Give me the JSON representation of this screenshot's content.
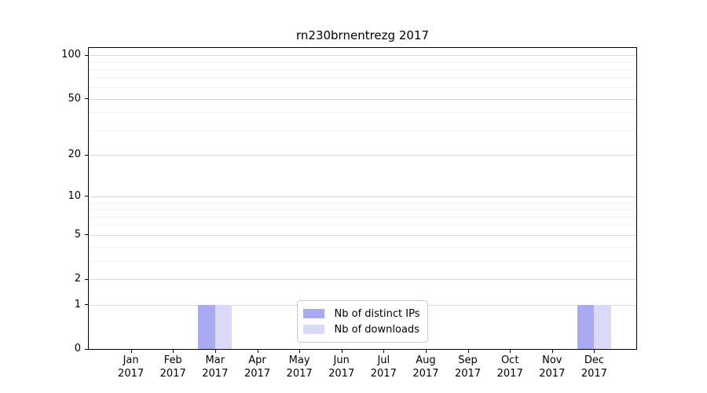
{
  "figure": {
    "background": "#ffffff"
  },
  "chart_data": {
    "type": "bar",
    "title": "rn230brnentrezg 2017",
    "categories": [
      "Jan",
      "Feb",
      "Mar",
      "Apr",
      "May",
      "Jun",
      "Jul",
      "Aug",
      "Sep",
      "Oct",
      "Nov",
      "Dec"
    ],
    "category_year": "2017",
    "series": [
      {
        "name": "Nb of distinct IPs",
        "color": "#aaaaf2",
        "values": [
          0,
          0,
          1,
          0,
          0,
          0,
          0,
          0,
          0,
          0,
          0,
          1
        ]
      },
      {
        "name": "Nb of downloads",
        "color": "#dadaf8",
        "values": [
          0,
          0,
          1,
          0,
          0,
          0,
          0,
          0,
          0,
          0,
          0,
          1
        ]
      }
    ],
    "yscale": "log10(1+y)",
    "ylim": [
      0,
      112
    ],
    "y_major_ticks": [
      0,
      1,
      2,
      5,
      10,
      20,
      50,
      100
    ],
    "y_minor_gridlines": [
      3,
      4,
      6,
      7,
      8,
      9,
      30,
      40,
      60,
      70,
      80,
      90
    ],
    "grid": true,
    "legend_position": "lower center",
    "bar_width_fraction": 0.4,
    "colors": {
      "spine": "#000000",
      "grid_major": "#d9d9d9",
      "grid_minor": "#f0f0f0"
    }
  }
}
